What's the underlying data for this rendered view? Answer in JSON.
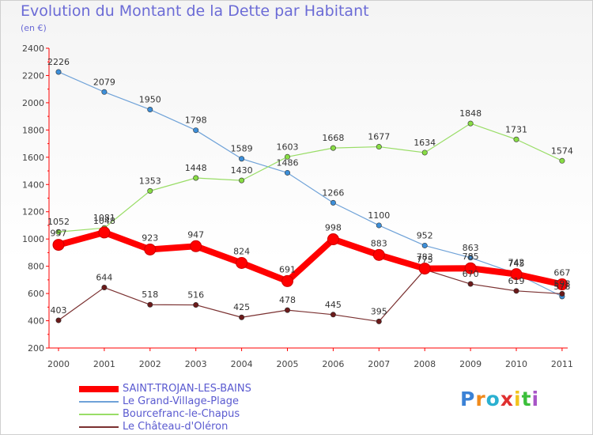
{
  "header": {
    "title": "Evolution du Montant de la Dette par Habitant",
    "unit": "(en €)"
  },
  "logo": {
    "letters": [
      "P",
      "r",
      "o",
      "x",
      "i",
      "t",
      "i"
    ]
  },
  "chart_data": {
    "type": "line",
    "title": "Evolution du Montant de la Dette par Habitant",
    "ylabel": "(en €)",
    "x": [
      "2000",
      "2001",
      "2002",
      "2003",
      "2004",
      "2005",
      "2006",
      "2007",
      "2008",
      "2009",
      "2010",
      "2011"
    ],
    "ylim": [
      200,
      2400
    ],
    "yticks": [
      200,
      400,
      600,
      800,
      1000,
      1200,
      1400,
      1600,
      1800,
      2000,
      2200,
      2400
    ],
    "grid": false,
    "legend_position": "bottom-left",
    "series": [
      {
        "name": "SAINT-TROJAN-LES-BAINS",
        "color": "#ff0000",
        "marker": "#ff0000",
        "thick": true,
        "values": [
          957,
          1048,
          923,
          947,
          824,
          691,
          998,
          883,
          783,
          785,
          742,
          667
        ],
        "labels": [
          "957",
          "1048",
          "923",
          "947",
          "824",
          "691",
          "998",
          "883",
          "783",
          "785",
          "742",
          "667"
        ]
      },
      {
        "name": "Le Grand-Village-Plage",
        "color": "#6fa2d8",
        "marker": "#3d8fd9",
        "values": [
          2226,
          2079,
          1950,
          1798,
          1589,
          1486,
          1266,
          1100,
          952,
          863,
          745,
          578
        ],
        "labels": [
          "2226",
          "2079",
          "1950",
          "1798",
          "1589",
          "1486",
          "1266",
          "1100",
          "952",
          "863",
          "745",
          "578"
        ]
      },
      {
        "name": "Bourcefranc-le-Chapus",
        "color": "#99dd66",
        "marker": "#88dd44",
        "values": [
          1052,
          1081,
          1353,
          1448,
          1430,
          1603,
          1668,
          1677,
          1634,
          1848,
          1731,
          1574
        ],
        "labels": [
          "1052",
          "1081",
          "1353",
          "1448",
          "1430",
          "1603",
          "1668",
          "1677",
          "1634",
          "1848",
          "1731",
          "1574"
        ]
      },
      {
        "name": "Le Château-d'Oléron",
        "color": "#7a3030",
        "marker": "#6b1a1a",
        "values": [
          403,
          644,
          518,
          516,
          425,
          478,
          445,
          395,
          775,
          670,
          619,
          598
        ],
        "labels": [
          "403",
          "644",
          "518",
          "516",
          "425",
          "478",
          "445",
          "395",
          "775",
          "670",
          "619",
          "598"
        ]
      }
    ]
  }
}
